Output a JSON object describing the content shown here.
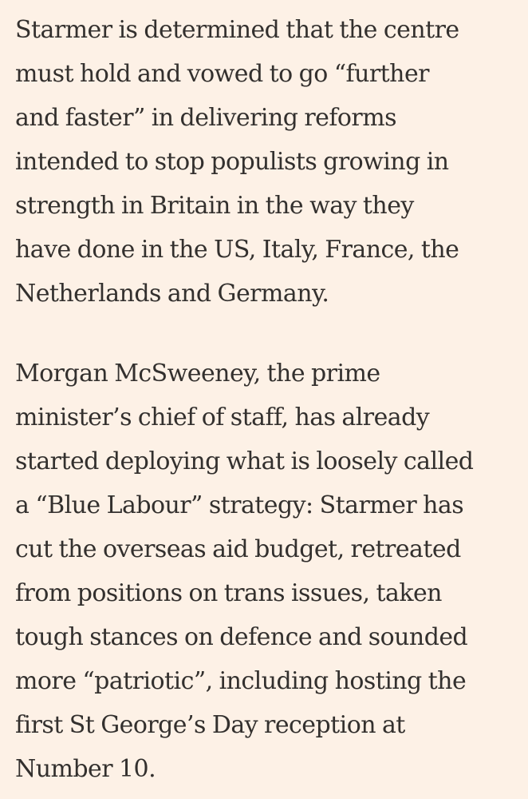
{
  "article": {
    "paragraphs": [
      {
        "lines": [
          "Starmer is determined that the centre",
          "must hold and vowed to go “further",
          "and faster” in delivering reforms",
          "intended to stop populists growing in",
          "strength in Britain in the way they",
          "have done in the US, Italy, France, the",
          "Netherlands and Germany."
        ]
      },
      {
        "lines": [
          "Morgan McSweeney, the prime",
          "minister’s chief of staff, has already",
          "started deploying what is loosely called",
          "a “Blue Labour” strategy: Starmer has",
          "cut the overseas aid budget, retreated",
          "from positions on trans issues, taken",
          "tough stances on defence and sounded",
          "more “patriotic”, including hosting the",
          "first St George’s Day reception at",
          "Number 10."
        ]
      }
    ]
  },
  "colors": {
    "background": "#fdf1e6",
    "text": "#33302e"
  }
}
